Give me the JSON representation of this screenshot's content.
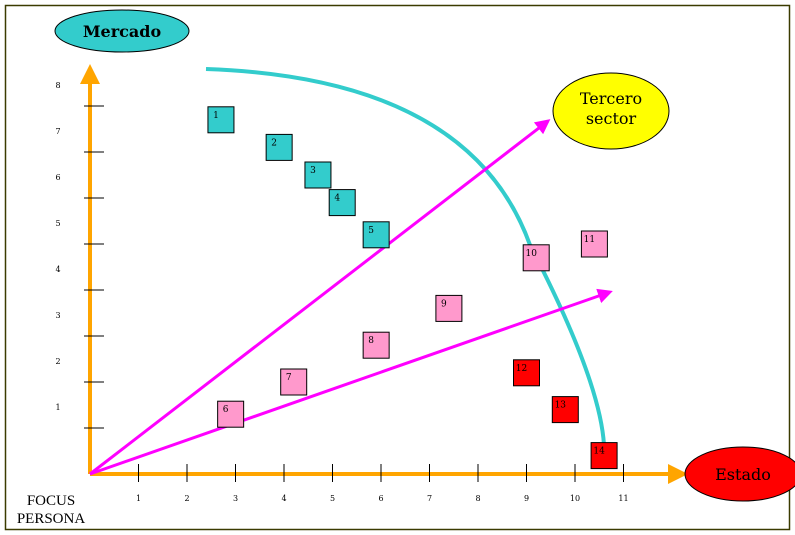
{
  "labels": {
    "y_axis": "Mercado",
    "x_axis": "Estado",
    "third_sector_line1": "Tercero",
    "third_sector_line2": "sector",
    "origin_line1": "FOCUS",
    "origin_line2": "PERSONA"
  },
  "colors": {
    "frame": "#3b3b00",
    "axis": "#ffa500",
    "arc": "#33cccc",
    "ray": "#ff00ff",
    "market": "#33cccc",
    "state": "#ff0000",
    "third_sector": "#ffff00",
    "pink": "#ff99cc",
    "red": "#ff0000"
  },
  "chart_data": {
    "type": "scatter",
    "x_ticks": [
      "1",
      "2",
      "3",
      "4",
      "5",
      "6",
      "7",
      "8",
      "9",
      "10",
      "11"
    ],
    "y_ticks": [
      "1",
      "2",
      "3",
      "4",
      "5",
      "6",
      "7",
      "8"
    ],
    "items": [
      {
        "label": "1",
        "x": 2.7,
        "y": 7.7,
        "color": "teal"
      },
      {
        "label": "2",
        "x": 3.9,
        "y": 7.1,
        "color": "teal"
      },
      {
        "label": "3",
        "x": 4.7,
        "y": 6.5,
        "color": "teal"
      },
      {
        "label": "4",
        "x": 5.2,
        "y": 5.9,
        "color": "teal"
      },
      {
        "label": "5",
        "x": 5.9,
        "y": 5.2,
        "color": "teal"
      },
      {
        "label": "6",
        "x": 2.9,
        "y": 1.3,
        "color": "pink"
      },
      {
        "label": "7",
        "x": 4.2,
        "y": 2.0,
        "color": "pink"
      },
      {
        "label": "8",
        "x": 5.9,
        "y": 2.8,
        "color": "pink"
      },
      {
        "label": "9",
        "x": 7.4,
        "y": 3.6,
        "color": "pink"
      },
      {
        "label": "10",
        "x": 9.2,
        "y": 4.7,
        "color": "pink"
      },
      {
        "label": "11",
        "x": 10.4,
        "y": 5.0,
        "color": "pink"
      },
      {
        "label": "12",
        "x": 9.0,
        "y": 2.2,
        "color": "red"
      },
      {
        "label": "13",
        "x": 9.8,
        "y": 1.4,
        "color": "red"
      },
      {
        "label": "14",
        "x": 10.6,
        "y": 0.4,
        "color": "red"
      }
    ]
  }
}
